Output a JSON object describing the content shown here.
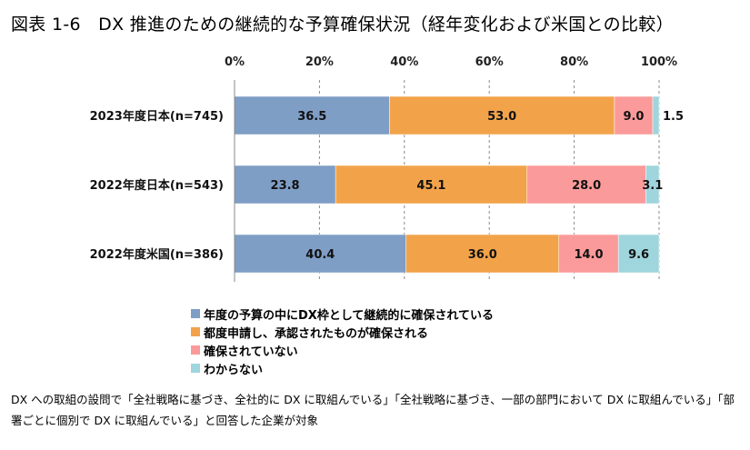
{
  "title": "図表 1-6　DX 推進のための継続的な予算確保状況（経年変化および米国との比較）",
  "note": "DX への取組の設問で「全社戦略に基づき、全社的に DX に取組んでいる」「全社戦略に基づき、一部の部門において DX に取組んでいる」「部署ごとに個別で DX に取組んでいる」と回答した企業が対象",
  "chart_data": {
    "type": "bar",
    "orientation": "horizontal",
    "stacked": true,
    "percent": true,
    "xlim": [
      0,
      100
    ],
    "xticks": [
      "0%",
      "20%",
      "40%",
      "60%",
      "80%",
      "100%"
    ],
    "axis_position": "top",
    "grid": true,
    "legend_position": "bottom",
    "categories": [
      "2023年度日本(n=745)",
      "2022年度日本(n=543)",
      "2022年度米国(n=386)"
    ],
    "series": [
      {
        "name": "年度の予算の中にDX枠として継続的に確保されている",
        "color": "#7f9ec6",
        "values": [
          36.5,
          23.8,
          40.4
        ]
      },
      {
        "name": "都度申請し、承認されたものが確保される",
        "color": "#f2a34a",
        "values": [
          53.0,
          45.1,
          36.0
        ]
      },
      {
        "name": "確保されていない",
        "color": "#fb9a9a",
        "values": [
          9.0,
          28.0,
          14.0
        ]
      },
      {
        "name": "わからない",
        "color": "#9fd5dc",
        "values": [
          1.5,
          3.1,
          9.6
        ]
      }
    ],
    "labels": [
      [
        "36.5",
        "53.0",
        "9.0",
        "1.5"
      ],
      [
        "23.8",
        "45.1",
        "28.0",
        "3.1"
      ],
      [
        "40.4",
        "36.0",
        "14.0",
        "9.6"
      ]
    ]
  }
}
